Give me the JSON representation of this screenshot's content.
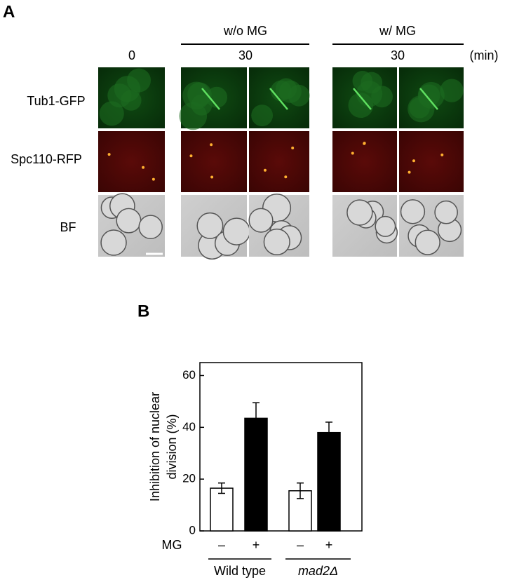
{
  "panel_labels": [
    "A",
    "B"
  ],
  "panel_a": {
    "condition_headers": [
      "w/o MG",
      "w/ MG"
    ],
    "time_labels": [
      "0",
      "30",
      "30"
    ],
    "time_unit": "(min)",
    "row_labels": [
      "Tub1-GFP",
      "Spc110-RFP",
      "BF"
    ]
  },
  "chart_data": {
    "type": "bar",
    "y_label": [
      "Inhibition of nuclear",
      "division (%)"
    ],
    "row_label": "MG",
    "categories": [
      "–",
      "+",
      "–",
      "+"
    ],
    "groups": [
      "Wild type",
      "mad2Δ"
    ],
    "values": [
      16.5,
      43.5,
      15.5,
      38
    ],
    "errors": [
      2,
      6,
      3,
      4
    ],
    "colors": [
      "#ffffff",
      "#000000",
      "#ffffff",
      "#000000"
    ],
    "ylim": [
      0,
      65
    ],
    "yticks": [
      0,
      20,
      40,
      60
    ]
  }
}
